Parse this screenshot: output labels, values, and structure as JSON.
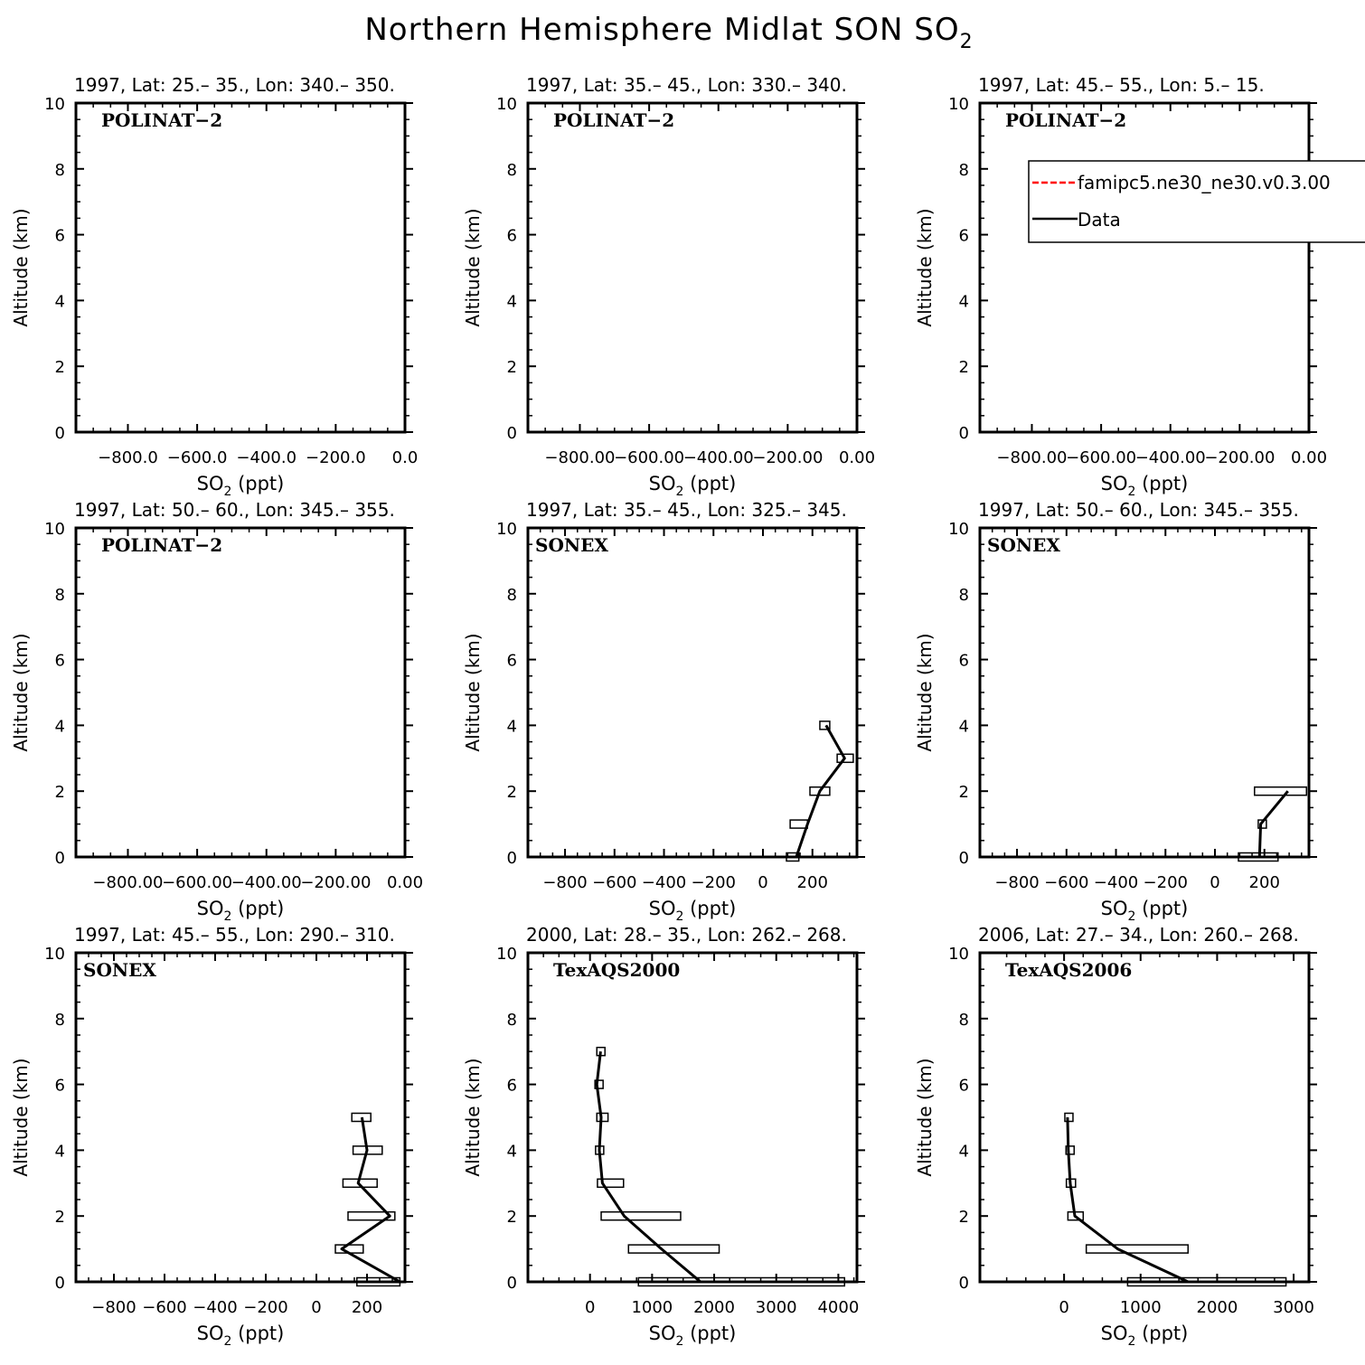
{
  "figure": {
    "title": "Northern Hemisphere Midlat SON SO",
    "title_sub": "2"
  },
  "legend": {
    "entries": [
      {
        "label": "famipc5.ne30_ne30.v0.3.00",
        "color": "#ff0000",
        "style": "dashed"
      },
      {
        "label": "Data",
        "color": "#000000",
        "style": "solid"
      }
    ]
  },
  "axis_text": {
    "ylabel": "Altitude (km)",
    "xlabel_main": "SO",
    "xlabel_sub": "2",
    "xlabel_unit": " (ppt)"
  },
  "chart_data": [
    {
      "type": "line",
      "title": "1997, Lat: 25.– 35., Lon: 340.– 350.",
      "campaign": "POLINAT−2",
      "xlim": [
        -950,
        0
      ],
      "ylim": [
        0,
        10
      ],
      "xticks": [
        -800,
        -600,
        -400,
        -200,
        0
      ],
      "xtick_labels": [
        "−800.0",
        "−600.0",
        "−400.0",
        "−200.0",
        "0.0"
      ],
      "yticks": [
        0,
        2,
        4,
        6,
        8,
        10
      ],
      "ytick_labels": [
        "0",
        "2",
        "4",
        "6",
        "8",
        "10"
      ],
      "series": [
        {
          "name": "Data",
          "altitude": [],
          "so2": [],
          "min": [],
          "max": []
        }
      ]
    },
    {
      "type": "line",
      "title": "1997, Lat: 35.– 45., Lon: 330.– 340.",
      "campaign": "POLINAT−2",
      "xlim": [
        -950,
        0
      ],
      "ylim": [
        0,
        10
      ],
      "xticks": [
        -800,
        -600,
        -400,
        -200,
        0
      ],
      "xtick_labels": [
        "−800.00",
        "−600.00",
        "−400.00",
        "−200.00",
        "0.00"
      ],
      "yticks": [
        0,
        2,
        4,
        6,
        8,
        10
      ],
      "ytick_labels": [
        "0",
        "2",
        "4",
        "6",
        "8",
        "10"
      ],
      "series": [
        {
          "name": "Data",
          "altitude": [],
          "so2": [],
          "min": [],
          "max": []
        }
      ]
    },
    {
      "type": "line",
      "title": "1997, Lat: 45.– 55., Lon: 5.– 15.",
      "campaign": "POLINAT−2",
      "has_legend": true,
      "xlim": [
        -950,
        0
      ],
      "ylim": [
        0,
        10
      ],
      "xticks": [
        -800,
        -600,
        -400,
        -200,
        0
      ],
      "xtick_labels": [
        "−800.00",
        "−600.00",
        "−400.00",
        "−200.00",
        "0.00"
      ],
      "yticks": [
        0,
        2,
        4,
        6,
        8,
        10
      ],
      "ytick_labels": [
        "0",
        "2",
        "4",
        "6",
        "8",
        "10"
      ],
      "series": [
        {
          "name": "Data",
          "altitude": [],
          "so2": [],
          "min": [],
          "max": []
        }
      ]
    },
    {
      "type": "line",
      "title": "1997, Lat: 50.– 60., Lon: 345.– 355.",
      "campaign": "POLINAT−2",
      "xlim": [
        -950,
        0
      ],
      "ylim": [
        0,
        10
      ],
      "xticks": [
        -800,
        -600,
        -400,
        -200,
        0
      ],
      "xtick_labels": [
        "−800.00",
        "−600.00",
        "−400.00",
        "−200.00",
        "0.00"
      ],
      "yticks": [
        0,
        2,
        4,
        6,
        8,
        10
      ],
      "ytick_labels": [
        "0",
        "2",
        "4",
        "6",
        "8",
        "10"
      ],
      "series": [
        {
          "name": "Data",
          "altitude": [],
          "so2": [],
          "min": [],
          "max": []
        }
      ]
    },
    {
      "type": "line",
      "title": "1997, Lat: 35.– 45., Lon: 325.– 345.",
      "campaign": "SONEX",
      "xlim": [
        -950,
        380
      ],
      "ylim": [
        0,
        10
      ],
      "xticks": [
        -800,
        -600,
        -400,
        -200,
        0,
        200
      ],
      "xtick_labels": [
        "−800",
        "−600",
        "−400",
        "−200",
        "0",
        "200"
      ],
      "yticks": [
        0,
        2,
        4,
        6,
        8,
        10
      ],
      "ytick_labels": [
        "0",
        "2",
        "4",
        "6",
        "8",
        "10"
      ],
      "series": [
        {
          "name": "Data",
          "altitude": [
            0,
            1,
            2,
            3,
            4
          ],
          "so2": [
            135,
            180,
            230,
            330,
            255
          ],
          "min": [
            95,
            110,
            190,
            300,
            230
          ],
          "max": [
            145,
            180,
            270,
            365,
            270
          ]
        }
      ]
    },
    {
      "type": "line",
      "title": "1997, Lat: 50.– 60., Lon: 345.– 355.",
      "campaign": "SONEX",
      "xlim": [
        -950,
        380
      ],
      "ylim": [
        0,
        10
      ],
      "xticks": [
        -800,
        -600,
        -400,
        -200,
        0,
        200
      ],
      "xtick_labels": [
        "−800",
        "−600",
        "−400",
        "−200",
        "0",
        "200"
      ],
      "yticks": [
        0,
        2,
        4,
        6,
        8,
        10
      ],
      "ytick_labels": [
        "0",
        "2",
        "4",
        "6",
        "8",
        "10"
      ],
      "series": [
        {
          "name": "Data",
          "altitude": [
            0,
            1,
            2
          ],
          "so2": [
            180,
            185,
            295
          ],
          "min": [
            95,
            175,
            160
          ],
          "max": [
            255,
            195,
            370
          ]
        }
      ]
    },
    {
      "type": "line",
      "title": "1997, Lat: 45.– 55., Lon: 290.– 310.",
      "campaign": "SONEX",
      "xlim": [
        -950,
        350
      ],
      "ylim": [
        0,
        10
      ],
      "xticks": [
        -800,
        -600,
        -400,
        -200,
        0,
        200
      ],
      "xtick_labels": [
        "−800",
        "−600",
        "−400",
        "−200",
        "0",
        "200"
      ],
      "yticks": [
        0,
        2,
        4,
        6,
        8,
        10
      ],
      "ytick_labels": [
        "0",
        "2",
        "4",
        "6",
        "8",
        "10"
      ],
      "series": [
        {
          "name": "Data",
          "altitude": [
            0,
            1,
            2,
            3,
            4,
            5
          ],
          "so2": [
            330,
            100,
            290,
            165,
            200,
            180
          ],
          "min": [
            160,
            75,
            125,
            105,
            145,
            140
          ],
          "max": [
            330,
            185,
            310,
            240,
            260,
            215
          ]
        }
      ]
    },
    {
      "type": "line",
      "title": "2000, Lat: 28.– 35., Lon: 262.– 268.",
      "campaign": "TexAQS2000",
      "xlim": [
        -1000,
        4300
      ],
      "ylim": [
        0,
        10
      ],
      "xticks": [
        0,
        1000,
        2000,
        3000,
        4000
      ],
      "xtick_labels": [
        "0",
        "1000",
        "2000",
        "3000",
        "4000"
      ],
      "yticks": [
        0,
        2,
        4,
        6,
        8,
        10
      ],
      "ytick_labels": [
        "0",
        "2",
        "4",
        "6",
        "8",
        "10"
      ],
      "series": [
        {
          "name": "Data",
          "altitude": [
            0,
            1,
            2,
            3,
            4,
            5,
            6,
            7
          ],
          "so2": [
            1780,
            1150,
            550,
            200,
            150,
            180,
            110,
            170
          ],
          "min": [
            780,
            620,
            180,
            120,
            90,
            110,
            80,
            110
          ],
          "max": [
            4100,
            2080,
            1460,
            540,
            220,
            290,
            170,
            230
          ]
        }
      ]
    },
    {
      "type": "line",
      "title": "2006, Lat: 27.– 34., Lon: 260.– 268.",
      "campaign": "TexAQS2006",
      "xlim": [
        -1100,
        3200
      ],
      "ylim": [
        0,
        10
      ],
      "xticks": [
        0,
        1000,
        2000,
        3000
      ],
      "xtick_labels": [
        "0",
        "1000",
        "2000",
        "3000"
      ],
      "yticks": [
        0,
        2,
        4,
        6,
        8,
        10
      ],
      "ytick_labels": [
        "0",
        "2",
        "4",
        "6",
        "8",
        "10"
      ],
      "series": [
        {
          "name": "Data",
          "altitude": [
            0,
            1,
            2,
            3,
            4,
            5
          ],
          "so2": [
            1620,
            700,
            140,
            80,
            55,
            45
          ],
          "min": [
            830,
            290,
            50,
            30,
            25,
            10
          ],
          "max": [
            2900,
            1620,
            250,
            150,
            100,
            85
          ]
        }
      ]
    }
  ]
}
